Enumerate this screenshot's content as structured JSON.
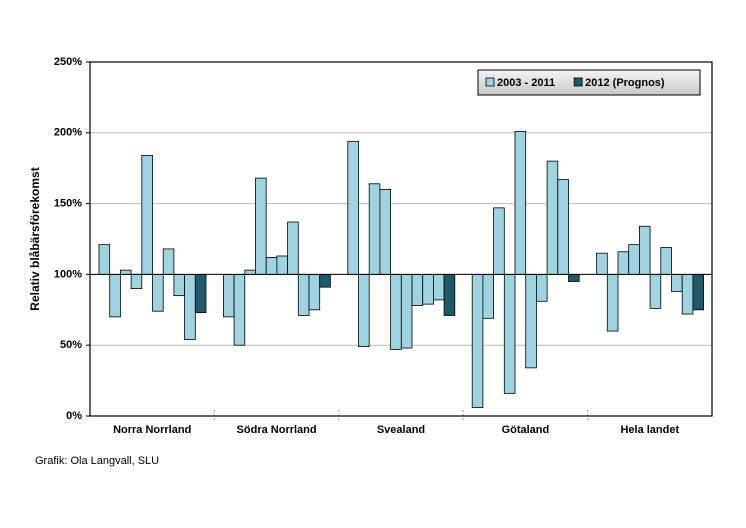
{
  "chart_data": {
    "type": "bar",
    "y_label": "Relativ blåbärsförekomst",
    "source": "Grafik: Ola Langvall, SLU",
    "categories": [
      "Norra Norrland",
      "Södra Norrland",
      "Svealand",
      "Götaland",
      "Hela landet"
    ],
    "series": [
      {
        "name": "2003 - 2011",
        "color": "#9fd3e0",
        "values": [
          [
            121,
            70,
            103,
            90,
            184,
            74,
            118,
            85,
            54
          ],
          [
            70,
            50,
            103,
            168,
            112,
            113,
            137,
            71,
            75
          ],
          [
            194,
            49,
            164,
            160,
            47,
            48,
            78,
            79,
            82
          ],
          [
            6,
            69,
            147,
            16,
            201,
            34,
            81,
            180,
            167
          ],
          [
            115,
            60,
            116,
            121,
            134,
            76,
            119,
            88,
            72
          ]
        ]
      },
      {
        "name": "2012 (Prognos)",
        "color": "#1f5a69",
        "values": [
          73,
          91,
          71,
          95,
          75
        ]
      }
    ],
    "baseline": 100,
    "ylim": [
      0,
      250
    ],
    "yticks": [
      {
        "value": 0,
        "label": "0%"
      },
      {
        "value": 50,
        "label": "50%"
      },
      {
        "value": 100,
        "label": "100%"
      },
      {
        "value": 150,
        "label": "150%"
      },
      {
        "value": 200,
        "label": "200%"
      },
      {
        "value": 250,
        "label": "250%"
      }
    ],
    "grid": true,
    "legend": "top-right"
  }
}
